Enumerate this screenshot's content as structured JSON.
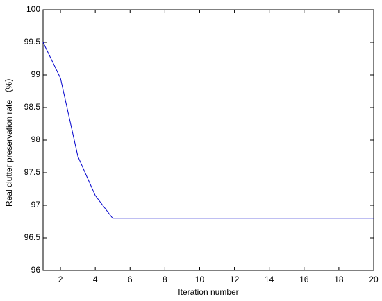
{
  "chart_data": {
    "type": "line",
    "x_label": "Iteration number",
    "y_label": "Real clutter preservation rate （%）",
    "x": [
      1,
      2,
      3,
      4,
      5,
      6,
      7,
      8,
      9,
      10,
      11,
      12,
      13,
      14,
      15,
      16,
      17,
      18,
      19,
      20
    ],
    "series": [
      {
        "color": "#0000cc",
        "values": [
          99.5,
          98.95,
          97.75,
          97.15,
          96.8,
          96.8,
          96.8,
          96.8,
          96.8,
          96.8,
          96.8,
          96.8,
          96.8,
          96.8,
          96.8,
          96.8,
          96.8,
          96.8,
          96.8,
          96.8
        ]
      }
    ],
    "xlim": [
      1,
      20
    ],
    "xticks": [
      2,
      4,
      6,
      8,
      10,
      12,
      14,
      16,
      18,
      20
    ],
    "ylim": [
      96,
      100
    ],
    "yticks": [
      96,
      96.5,
      97,
      97.5,
      98,
      98.5,
      99,
      99.5,
      100
    ],
    "grid": false
  }
}
